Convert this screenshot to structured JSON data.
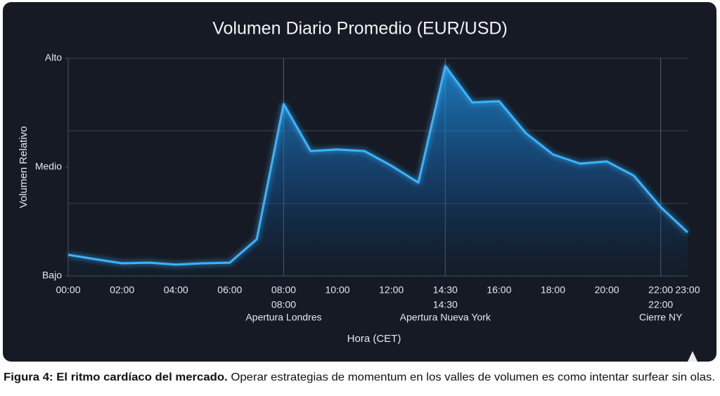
{
  "chart_data": {
    "type": "line",
    "title": "Volumen Diario Promedio (EUR/USD)",
    "x_label": "Hora (CET)",
    "y_label": "Volumen Relativo",
    "categories": [
      "00:00",
      null,
      "02:00",
      null,
      "04:00",
      null,
      "06:00",
      null,
      "08:00",
      null,
      "10:00",
      null,
      "12:00",
      null,
      "14:30",
      null,
      "16:00",
      null,
      "18:00",
      null,
      "20:00",
      null,
      "22:00",
      "23:00"
    ],
    "series": [
      {
        "name": "Volumen",
        "color": "#3ab4ff",
        "values": [
          9.7,
          7.7,
          5.8,
          6.1,
          5.2,
          5.8,
          6.1,
          16.8,
          79,
          57.4,
          58.1,
          57.4,
          50.6,
          42.9,
          96.5,
          79.7,
          80.3,
          65.5,
          55.8,
          51.6,
          52.6,
          46.1,
          31.6,
          20
        ]
      }
    ],
    "ylim": [
      0,
      100
    ],
    "yticks": [
      {
        "value": 0,
        "label": "Bajo"
      },
      {
        "value": 50,
        "label": "Medio"
      },
      {
        "value": 100,
        "label": "Alto"
      }
    ],
    "ygrid": [
      33.3,
      66.7,
      100
    ],
    "annotations": [
      {
        "time": "08:00",
        "text": "Apertura Londres"
      },
      {
        "time": "14:30",
        "text": "Apertura Nueva York"
      },
      {
        "time": "22:00",
        "text": "Cierre NY"
      }
    ],
    "caption_bold": "Figura 4: El ritmo cardíaco del mercado.",
    "caption_text": "Operar estrategias de momentum en los valles de volumen es como intentar surfear sin olas."
  }
}
